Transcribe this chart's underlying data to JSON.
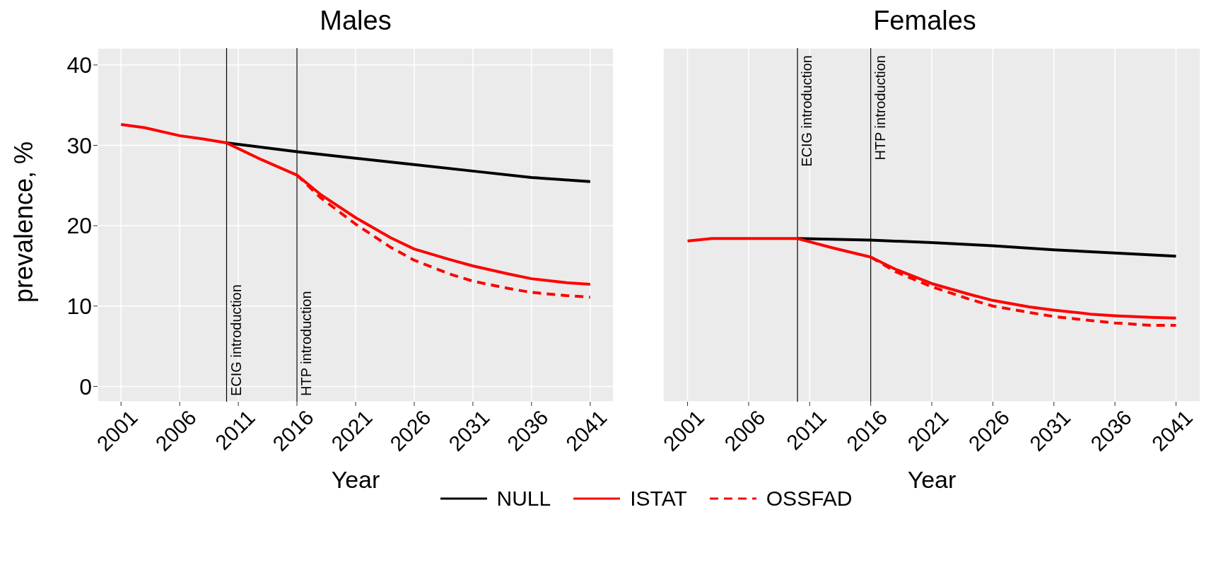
{
  "chart_data": [
    {
      "type": "line",
      "title": "Males",
      "xlabel": "Year",
      "ylabel": "prevalence, %",
      "xlim": [
        1999,
        2043
      ],
      "xticks": [
        2001,
        2006,
        2011,
        2016,
        2021,
        2026,
        2031,
        2036,
        2041
      ],
      "ylim": [
        -1.9,
        42.1
      ],
      "yticks": [
        0,
        10,
        20,
        30,
        40
      ],
      "grid": true,
      "legend": "bottom",
      "marker": "none",
      "ref_lines": [
        {
          "axis": "x",
          "value": 2010,
          "label": "ECIG introduction",
          "color": "#000000"
        },
        {
          "axis": "x",
          "value": 2016,
          "label": "HTP introduction",
          "color": "#000000"
        }
      ],
      "series": [
        {
          "name": "NULL",
          "color": "#000000",
          "line_style": "solid",
          "x": [
            2010,
            2016,
            2021,
            2026,
            2031,
            2036,
            2041
          ],
          "values": [
            30.3,
            29.2,
            28.4,
            27.6,
            26.8,
            26.0,
            25.5
          ]
        },
        {
          "name": "ISTAT",
          "color": "#ff0000",
          "line_style": "solid",
          "x": [
            2001,
            2003,
            2006,
            2008,
            2010,
            2013,
            2016,
            2018,
            2021,
            2024,
            2026,
            2029,
            2031,
            2034,
            2036,
            2039,
            2041
          ],
          "values": [
            32.6,
            32.2,
            31.2,
            30.8,
            30.3,
            28.2,
            26.3,
            23.9,
            21.0,
            18.5,
            17.1,
            15.8,
            15.0,
            14.0,
            13.4,
            12.9,
            12.7
          ]
        },
        {
          "name": "OSSFAD",
          "color": "#ff0000",
          "line_style": "dashed",
          "x": [
            2016,
            2018,
            2021,
            2024,
            2026,
            2029,
            2031,
            2034,
            2036,
            2039,
            2041
          ],
          "values": [
            26.3,
            23.5,
            20.2,
            17.3,
            15.7,
            14.0,
            13.1,
            12.2,
            11.7,
            11.3,
            11.1
          ]
        }
      ]
    },
    {
      "type": "line",
      "title": "Females",
      "xlabel": "Year",
      "xlim": [
        1999,
        2043
      ],
      "xticks": [
        2001,
        2006,
        2011,
        2016,
        2021,
        2026,
        2031,
        2036,
        2041
      ],
      "ylim": [
        -1.9,
        42.1
      ],
      "yticks": [
        0,
        10,
        20,
        30,
        40
      ],
      "tick_labels": "x",
      "grid": true,
      "marker": "none",
      "ref_lines": [
        {
          "axis": "x",
          "value": 2010,
          "label": "ECIG introduction",
          "color": "#000000"
        },
        {
          "axis": "x",
          "value": 2016,
          "label": "HTP introduction",
          "color": "#000000"
        }
      ],
      "series": [
        {
          "color": "#000000",
          "line_style": "solid",
          "x": [
            2010,
            2016,
            2021,
            2026,
            2031,
            2036,
            2041
          ],
          "values": [
            18.4,
            18.2,
            17.9,
            17.5,
            17.0,
            16.6,
            16.2
          ]
        },
        {
          "color": "#ff0000",
          "line_style": "solid",
          "x": [
            2001,
            2003,
            2006,
            2010,
            2013,
            2016,
            2018,
            2021,
            2024,
            2026,
            2029,
            2031,
            2034,
            2036,
            2039,
            2041
          ],
          "values": [
            18.1,
            18.4,
            18.4,
            18.4,
            17.2,
            16.1,
            14.6,
            12.8,
            11.5,
            10.7,
            9.9,
            9.5,
            9.0,
            8.8,
            8.6,
            8.5
          ]
        },
        {
          "color": "#ff0000",
          "line_style": "dashed",
          "x": [
            2016,
            2018,
            2021,
            2024,
            2026,
            2029,
            2031,
            2034,
            2036,
            2039,
            2041
          ],
          "values": [
            16.1,
            14.3,
            12.4,
            10.9,
            10.0,
            9.2,
            8.7,
            8.2,
            7.9,
            7.6,
            7.6
          ]
        }
      ]
    }
  ]
}
